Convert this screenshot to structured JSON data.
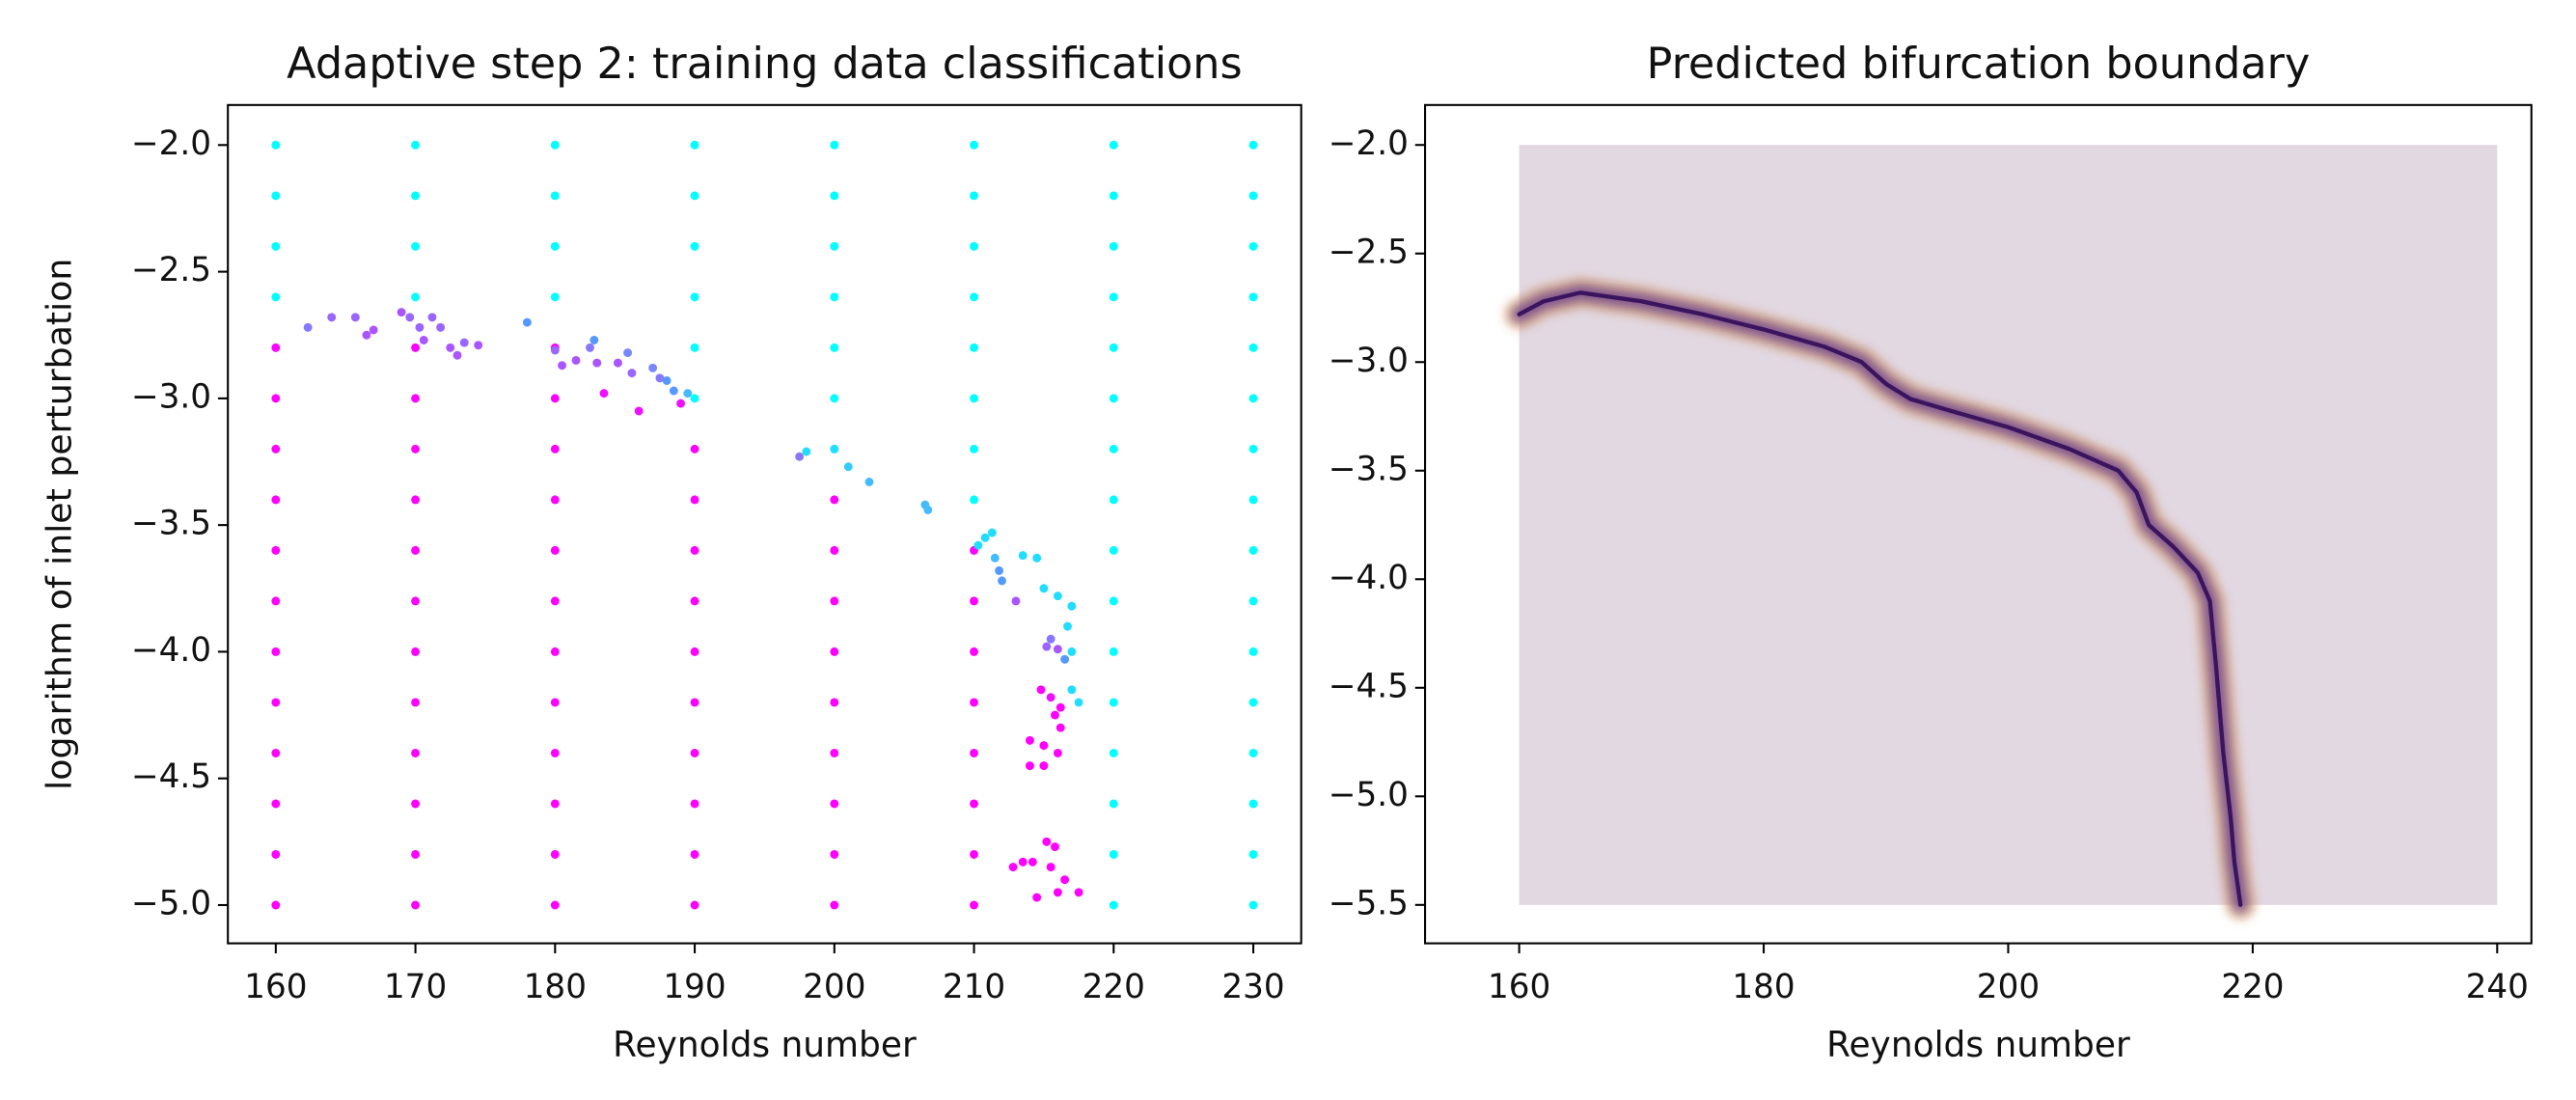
{
  "chart_data": [
    {
      "type": "scatter",
      "title": "Adaptive step 2: training data classifications",
      "xlabel": "Reynolds number",
      "ylabel": "logarithm of inlet perturbation",
      "xlim": [
        156.57,
        233.43
      ],
      "ylim": [
        -5.151,
        -1.842
      ],
      "xticks": [
        160,
        170,
        180,
        190,
        200,
        210,
        220,
        230
      ],
      "yticks": [
        {
          "value": -2.0,
          "label": "−2.0"
        },
        {
          "value": -2.5,
          "label": "−2.5"
        },
        {
          "value": -3.0,
          "label": "−3.0"
        },
        {
          "value": -3.5,
          "label": "−3.5"
        },
        {
          "value": -4.0,
          "label": "−4.0"
        },
        {
          "value": -4.5,
          "label": "−4.5"
        },
        {
          "value": -5.0,
          "label": "−5.0"
        }
      ],
      "series": [
        {
          "color": "#00ffff",
          "x": [
            160,
            160,
            160,
            160,
            170,
            170,
            170,
            170,
            180,
            180,
            180,
            180,
            190,
            190,
            190,
            190,
            190,
            190,
            200,
            200,
            200,
            200,
            200,
            200,
            200,
            210,
            210,
            210,
            210,
            210,
            210,
            210,
            210,
            220,
            220,
            220,
            220,
            220,
            220,
            220,
            220,
            220,
            220,
            220,
            220,
            220,
            220,
            220,
            220,
            230,
            230,
            230,
            230,
            230,
            230,
            230,
            230,
            230,
            230,
            230,
            230,
            230,
            230,
            230,
            230
          ],
          "values": [
            -2,
            -2.2,
            -2.4,
            -2.6,
            -2,
            -2.2,
            -2.4,
            -2.6,
            -2,
            -2.2,
            -2.4,
            -2.6,
            -2,
            -2.2,
            -2.4,
            -2.6,
            -2.8,
            -3,
            -2,
            -2.2,
            -2.4,
            -2.6,
            -2.8,
            -3,
            -3.2,
            -2,
            -2.2,
            -2.4,
            -2.6,
            -2.8,
            -3,
            -3.2,
            -3.4,
            -2,
            -2.2,
            -2.4,
            -2.6,
            -2.8,
            -3,
            -3.2,
            -3.4,
            -3.6,
            -3.8,
            -4,
            -4.2,
            -4.4,
            -4.6,
            -4.8,
            -5,
            -2,
            -2.2,
            -2.4,
            -2.6,
            -2.8,
            -3,
            -3.2,
            -3.4,
            -3.6,
            -3.8,
            -4,
            -4.2,
            -4.4,
            -4.6,
            -4.8,
            -5
          ]
        },
        {
          "color": "#ff00ff",
          "x": [
            160,
            160,
            160,
            160,
            160,
            160,
            160,
            160,
            160,
            160,
            160,
            160,
            170,
            170,
            170,
            170,
            170,
            170,
            170,
            170,
            170,
            170,
            170,
            170,
            180,
            180,
            180,
            180,
            180,
            180,
            180,
            180,
            180,
            180,
            180,
            180,
            190,
            190,
            190,
            190,
            190,
            190,
            190,
            190,
            190,
            190,
            200,
            200,
            200,
            200,
            200,
            200,
            200,
            200,
            200,
            210,
            210,
            210,
            210,
            210,
            210,
            210,
            210
          ],
          "values": [
            -2.8,
            -3,
            -3.2,
            -3.4,
            -3.6,
            -3.8,
            -4,
            -4.2,
            -4.4,
            -4.6,
            -4.8,
            -5,
            -2.8,
            -3,
            -3.2,
            -3.4,
            -3.6,
            -3.8,
            -4,
            -4.2,
            -4.4,
            -4.6,
            -4.8,
            -5,
            -2.8,
            -3,
            -3.2,
            -3.4,
            -3.6,
            -3.8,
            -4,
            -4.2,
            -4.4,
            -4.6,
            -4.8,
            -5,
            -3.2,
            -3.4,
            -3.6,
            -3.8,
            -4,
            -4.2,
            -4.4,
            -4.6,
            -4.8,
            -5,
            -3.4,
            -3.6,
            -3.8,
            -4,
            -4.2,
            -4.4,
            -4.6,
            -4.8,
            -5,
            -3.6,
            -3.8,
            -4,
            -4.2,
            -4.4,
            -4.6,
            -4.8,
            -5
          ]
        },
        {
          "colors": [
            "#8877ff",
            "#9966ff",
            "#9966ff",
            "#aa55ff",
            "#aa55ff",
            "#aa55ff",
            "#9966ff",
            "#9966ff",
            "#aa55ff",
            "#9966ff",
            "#9966ff",
            "#aa55ff",
            "#aa55ff",
            "#9966ff",
            "#aa55ff",
            "#5599ff",
            "#9966ff",
            "#aa55ff",
            "#aa55ff",
            "#8877ff",
            "#5599ff",
            "#aa55ff",
            "#ee11ff",
            "#aa55ff",
            "#7788ff",
            "#9966ff",
            "#ee11ff",
            "#7788ff",
            "#8877ff",
            "#5599ff",
            "#5599ff",
            "#ee11ff",
            "#44bbff",
            "#8877ff",
            "#22ddff",
            "#22ddff",
            "#33ccff",
            "#44bbff",
            "#44bbff",
            "#44bbff",
            "#22ddff",
            "#22ddff",
            "#22ddff",
            "#44bbff",
            "#5599ff",
            "#5599ff",
            "#aa55ff",
            "#22ddff",
            "#22ddff",
            "#22ddff",
            "#22ddff",
            "#22ddff",
            "#8877ff",
            "#9966ff",
            "#aa55ff",
            "#5599ff",
            "#22ddff",
            "#22ddff",
            "#22ddff",
            "#22ddff",
            "#ff00ff",
            "#ff00ff",
            "#ee11ff",
            "#ff00ff",
            "#ff00ff",
            "#ff00ff",
            "#ff00ff",
            "#ff00ff",
            "#ff00ff",
            "#ff00ff",
            "#ff00ff",
            "#ff00ff",
            "#ff00ff",
            "#ff00ff",
            "#ff00ff",
            "#ff00ff",
            "#ff00ff",
            "#ff00ff",
            "#ff00ff",
            "#ff00ff"
          ],
          "x": [
            162.3,
            164,
            165.7,
            166.5,
            167,
            169,
            169.6,
            170.3,
            170.6,
            171.2,
            171.8,
            172.5,
            173,
            173.5,
            174.5,
            178,
            180,
            180.5,
            181.5,
            182.5,
            182.8,
            183,
            183.5,
            184.5,
            185.2,
            185.5,
            186,
            187,
            187.5,
            188,
            188.5,
            189,
            189.5,
            197.5,
            198,
            200,
            201,
            202.5,
            206.5,
            206.7,
            210.3,
            210.8,
            211.3,
            211.5,
            211.8,
            212,
            213,
            213.5,
            214.5,
            215,
            216,
            217,
            215.5,
            215.2,
            216,
            216.5,
            216.7,
            217,
            217,
            217.5,
            216.2,
            214.8,
            215.5,
            215.8,
            216.2,
            214,
            215,
            216,
            214,
            215,
            213.5,
            214.2,
            215.2,
            215.8,
            215.5,
            216.5,
            216,
            217.5,
            214.5,
            212.8
          ],
          "values": [
            -2.72,
            -2.68,
            -2.68,
            -2.75,
            -2.73,
            -2.66,
            -2.68,
            -2.72,
            -2.77,
            -2.68,
            -2.72,
            -2.8,
            -2.83,
            -2.78,
            -2.79,
            -2.7,
            -2.81,
            -2.87,
            -2.85,
            -2.8,
            -2.77,
            -2.86,
            -2.98,
            -2.86,
            -2.82,
            -2.9,
            -3.05,
            -2.88,
            -2.92,
            -2.93,
            -2.97,
            -3.02,
            -2.98,
            -3.23,
            -3.21,
            -3.2,
            -3.27,
            -3.33,
            -3.42,
            -3.44,
            -3.58,
            -3.55,
            -3.53,
            -3.63,
            -3.68,
            -3.72,
            -3.8,
            -3.62,
            -3.63,
            -3.75,
            -3.78,
            -3.82,
            -3.95,
            -3.98,
            -3.99,
            -4.03,
            -3.9,
            -4.0,
            -4.15,
            -4.2,
            -4.22,
            -4.15,
            -4.18,
            -4.25,
            -4.3,
            -4.35,
            -4.37,
            -4.4,
            -4.45,
            -4.45,
            -4.83,
            -4.83,
            -4.75,
            -4.77,
            -4.85,
            -4.9,
            -4.95,
            -4.95,
            -4.97,
            -4.85
          ]
        }
      ]
    },
    {
      "type": "line",
      "title": "Predicted bifurcation boundary",
      "xlabel": "Reynolds number",
      "xlim": [
        152.3,
        242.8
      ],
      "ylim": [
        -5.677,
        -1.816
      ],
      "xticks": [
        160,
        180,
        200,
        220,
        240
      ],
      "yticks": [
        {
          "value": -2.0,
          "label": "−2.0"
        },
        {
          "value": -2.5,
          "label": "−2.5"
        },
        {
          "value": -3.0,
          "label": "−3.0"
        },
        {
          "value": -3.5,
          "label": "−3.5"
        },
        {
          "value": -4.0,
          "label": "−4.0"
        },
        {
          "value": -4.5,
          "label": "−4.5"
        },
        {
          "value": -5.0,
          "label": "−5.0"
        },
        {
          "value": -5.5,
          "label": "−5.5"
        }
      ],
      "region": {
        "x": [
          160,
          240
        ],
        "y": [
          -5.5,
          -2.0
        ],
        "color": "#e2d8e2"
      },
      "series": [
        {
          "color": "#3b145e",
          "x": [
            160,
            162,
            165,
            170,
            175,
            180,
            185,
            188,
            190,
            192,
            195,
            200,
            205,
            209,
            210.5,
            211.5,
            213.5,
            215.5,
            216.5,
            217,
            217.6,
            218.2,
            218.5,
            219
          ],
          "values": [
            -2.78,
            -2.72,
            -2.68,
            -2.72,
            -2.78,
            -2.85,
            -2.93,
            -3.0,
            -3.1,
            -3.17,
            -3.22,
            -3.3,
            -3.4,
            -3.5,
            -3.6,
            -3.75,
            -3.85,
            -3.97,
            -4.1,
            -4.4,
            -4.8,
            -5.1,
            -5.3,
            -5.5
          ]
        }
      ]
    }
  ]
}
